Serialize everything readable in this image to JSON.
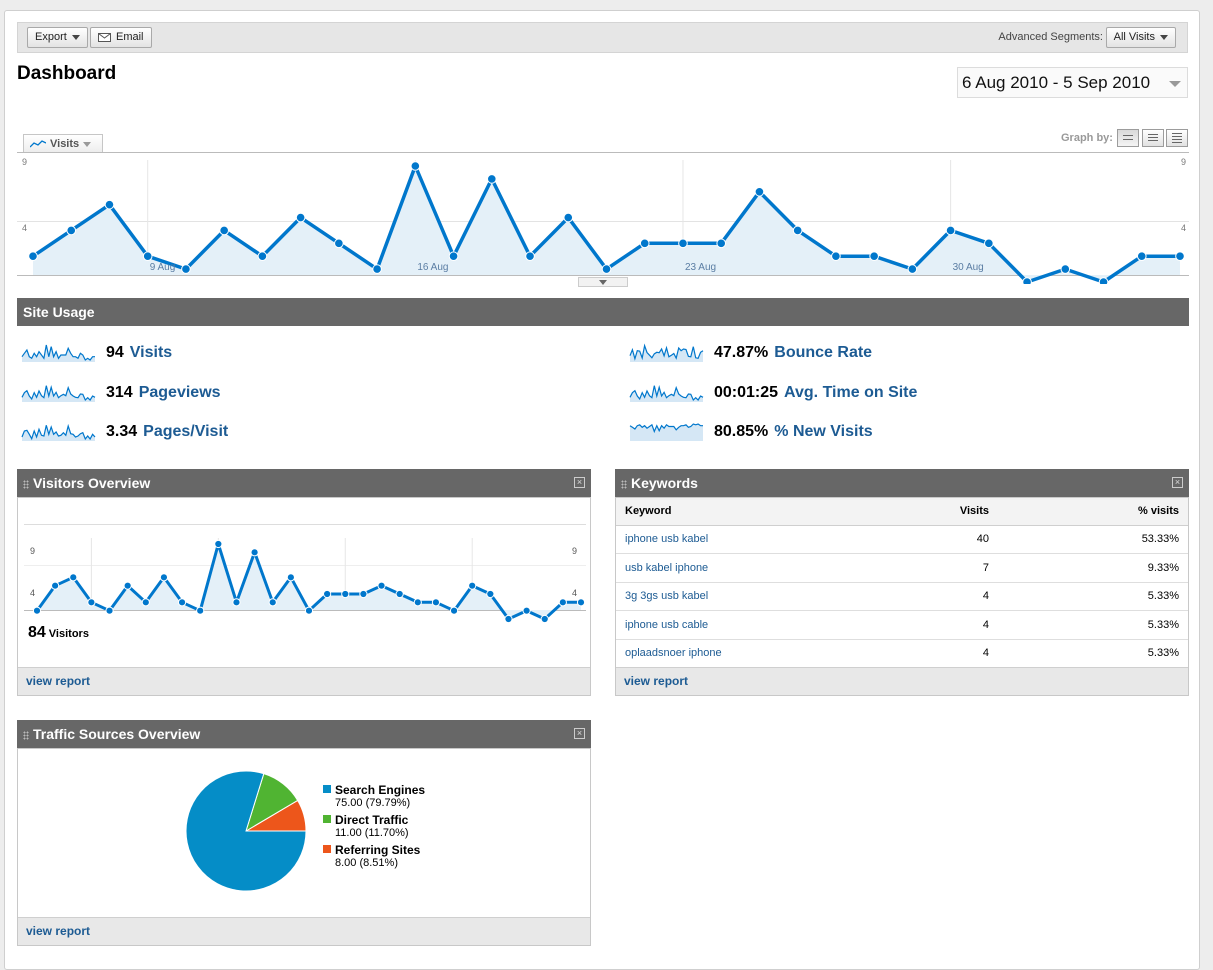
{
  "toolbar": {
    "export_label": "Export",
    "email_label": "Email",
    "segments_label": "Advanced Segments:",
    "segments_value": "All Visits"
  },
  "page_title": "Dashboard",
  "date_range": "6 Aug 2010 - 5 Sep 2010",
  "graph": {
    "metric_tab": "Visits",
    "graph_by_label": "Graph by:",
    "y_max_label": "9",
    "y_mid_label": "4",
    "x_labels": [
      "9 Aug",
      "16 Aug",
      "23 Aug",
      "30 Aug"
    ]
  },
  "chart_data": [
    {
      "type": "line",
      "title": "",
      "x": [
        "6 Aug",
        "7 Aug",
        "8 Aug",
        "9 Aug",
        "10 Aug",
        "11 Aug",
        "12 Aug",
        "13 Aug",
        "14 Aug",
        "15 Aug",
        "16 Aug",
        "17 Aug",
        "18 Aug",
        "19 Aug",
        "20 Aug",
        "21 Aug",
        "22 Aug",
        "23 Aug",
        "24 Aug",
        "25 Aug",
        "26 Aug",
        "27 Aug",
        "28 Aug",
        "29 Aug",
        "30 Aug",
        "31 Aug",
        "1 Sep",
        "2 Sep",
        "3 Sep",
        "4 Sep",
        "5 Sep"
      ],
      "series": [
        {
          "name": "Visits",
          "values": [
            2,
            4,
            6,
            2,
            1,
            4,
            2,
            5,
            3,
            1,
            9,
            2,
            8,
            2,
            5,
            1,
            3,
            3,
            3,
            7,
            4,
            2,
            2,
            1,
            4,
            3,
            0,
            1,
            0,
            2,
            2
          ]
        }
      ],
      "ylim": [
        0,
        9
      ],
      "yticks": [
        4,
        9
      ]
    },
    {
      "type": "line",
      "title": "",
      "x": [
        "6 Aug",
        "7 Aug",
        "8 Aug",
        "9 Aug",
        "10 Aug",
        "11 Aug",
        "12 Aug",
        "13 Aug",
        "14 Aug",
        "15 Aug",
        "16 Aug",
        "17 Aug",
        "18 Aug",
        "19 Aug",
        "20 Aug",
        "21 Aug",
        "22 Aug",
        "23 Aug",
        "24 Aug",
        "25 Aug",
        "26 Aug",
        "27 Aug",
        "28 Aug",
        "29 Aug",
        "30 Aug",
        "31 Aug",
        "1 Sep",
        "2 Sep",
        "3 Sep",
        "4 Sep",
        "5 Sep"
      ],
      "series": [
        {
          "name": "Visitors",
          "values": [
            1,
            4,
            5,
            2,
            1,
            4,
            2,
            5,
            2,
            1,
            9,
            2,
            8,
            2,
            5,
            1,
            3,
            3,
            3,
            4,
            3,
            2,
            2,
            1,
            4,
            3,
            0,
            1,
            0,
            2,
            2
          ]
        }
      ],
      "ylim": [
        0,
        9
      ],
      "yticks": [
        4,
        9
      ]
    },
    {
      "type": "pie",
      "title": "",
      "categories": [
        "Search Engines",
        "Direct Traffic",
        "Referring Sites"
      ],
      "values": [
        75.0,
        11.0,
        8.0
      ],
      "percent": [
        79.79,
        11.7,
        8.51
      ],
      "colors": [
        "#058dc7",
        "#50b432",
        "#ed561b"
      ]
    }
  ],
  "site_usage": {
    "title": "Site Usage",
    "metrics": [
      {
        "value": "94",
        "label": "Visits"
      },
      {
        "value": "314",
        "label": "Pageviews"
      },
      {
        "value": "3.34",
        "label": "Pages/Visit"
      },
      {
        "value": "47.87%",
        "label": "Bounce Rate"
      },
      {
        "value": "00:01:25",
        "label": "Avg. Time on Site"
      },
      {
        "value": "80.85%",
        "label": "% New Visits"
      }
    ]
  },
  "visitors_overview": {
    "title": "Visitors Overview",
    "count": "84",
    "count_label": "Visitors",
    "y_max_label": "9",
    "y_mid_label": "4",
    "view_report": "view report"
  },
  "keywords": {
    "title": "Keywords",
    "columns": [
      "Keyword",
      "Visits",
      "% visits"
    ],
    "rows": [
      [
        "iphone usb kabel",
        "40",
        "53.33%"
      ],
      [
        "usb kabel iphone",
        "7",
        "9.33%"
      ],
      [
        "3g 3gs usb kabel",
        "4",
        "5.33%"
      ],
      [
        "iphone usb cable",
        "4",
        "5.33%"
      ],
      [
        "oplaadsnoer iphone",
        "4",
        "5.33%"
      ]
    ],
    "view_report": "view report"
  },
  "traffic_sources": {
    "title": "Traffic Sources Overview",
    "legend": [
      {
        "name": "Search Engines",
        "detail": "75.00 (79.79%)"
      },
      {
        "name": "Direct Traffic",
        "detail": "11.00 (11.70%)"
      },
      {
        "name": "Referring Sites",
        "detail": "8.00 (8.51%)"
      }
    ],
    "view_report": "view report"
  },
  "colors": {
    "line": "#0077cc",
    "fill": "#e4f0f8",
    "header_bar": "#676767",
    "link": "#1d5b93"
  }
}
